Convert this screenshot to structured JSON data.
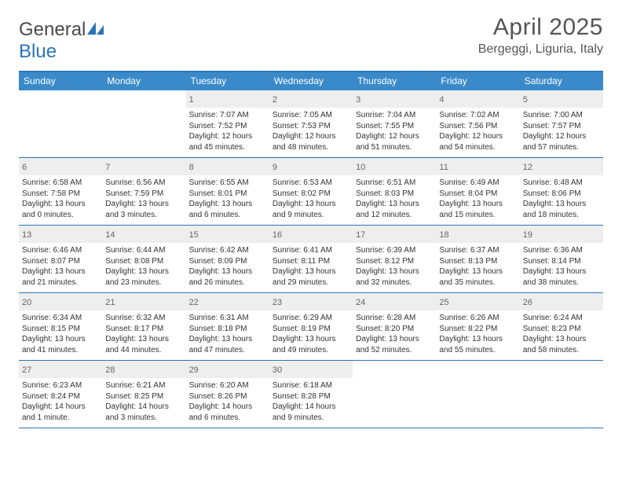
{
  "logo": {
    "word1": "General",
    "word2": "Blue"
  },
  "header": {
    "month": "April 2025",
    "location": "Bergeggi, Liguria, Italy"
  },
  "colors": {
    "brand_blue": "#2a74b8",
    "header_blue": "#3a8aca",
    "grey_band": "#eeeeee",
    "text": "#333333",
    "muted": "#555555"
  },
  "day_labels": [
    "Sunday",
    "Monday",
    "Tuesday",
    "Wednesday",
    "Thursday",
    "Friday",
    "Saturday"
  ],
  "weeks": [
    [
      null,
      null,
      {
        "n": "1",
        "sunrise": "7:07 AM",
        "sunset": "7:52 PM",
        "daylight": "12 hours and 45 minutes."
      },
      {
        "n": "2",
        "sunrise": "7:05 AM",
        "sunset": "7:53 PM",
        "daylight": "12 hours and 48 minutes."
      },
      {
        "n": "3",
        "sunrise": "7:04 AM",
        "sunset": "7:55 PM",
        "daylight": "12 hours and 51 minutes."
      },
      {
        "n": "4",
        "sunrise": "7:02 AM",
        "sunset": "7:56 PM",
        "daylight": "12 hours and 54 minutes."
      },
      {
        "n": "5",
        "sunrise": "7:00 AM",
        "sunset": "7:57 PM",
        "daylight": "12 hours and 57 minutes."
      }
    ],
    [
      {
        "n": "6",
        "sunrise": "6:58 AM",
        "sunset": "7:58 PM",
        "daylight": "13 hours and 0 minutes."
      },
      {
        "n": "7",
        "sunrise": "6:56 AM",
        "sunset": "7:59 PM",
        "daylight": "13 hours and 3 minutes."
      },
      {
        "n": "8",
        "sunrise": "6:55 AM",
        "sunset": "8:01 PM",
        "daylight": "13 hours and 6 minutes."
      },
      {
        "n": "9",
        "sunrise": "6:53 AM",
        "sunset": "8:02 PM",
        "daylight": "13 hours and 9 minutes."
      },
      {
        "n": "10",
        "sunrise": "6:51 AM",
        "sunset": "8:03 PM",
        "daylight": "13 hours and 12 minutes."
      },
      {
        "n": "11",
        "sunrise": "6:49 AM",
        "sunset": "8:04 PM",
        "daylight": "13 hours and 15 minutes."
      },
      {
        "n": "12",
        "sunrise": "6:48 AM",
        "sunset": "8:06 PM",
        "daylight": "13 hours and 18 minutes."
      }
    ],
    [
      {
        "n": "13",
        "sunrise": "6:46 AM",
        "sunset": "8:07 PM",
        "daylight": "13 hours and 21 minutes."
      },
      {
        "n": "14",
        "sunrise": "6:44 AM",
        "sunset": "8:08 PM",
        "daylight": "13 hours and 23 minutes."
      },
      {
        "n": "15",
        "sunrise": "6:42 AM",
        "sunset": "8:09 PM",
        "daylight": "13 hours and 26 minutes."
      },
      {
        "n": "16",
        "sunrise": "6:41 AM",
        "sunset": "8:11 PM",
        "daylight": "13 hours and 29 minutes."
      },
      {
        "n": "17",
        "sunrise": "6:39 AM",
        "sunset": "8:12 PM",
        "daylight": "13 hours and 32 minutes."
      },
      {
        "n": "18",
        "sunrise": "6:37 AM",
        "sunset": "8:13 PM",
        "daylight": "13 hours and 35 minutes."
      },
      {
        "n": "19",
        "sunrise": "6:36 AM",
        "sunset": "8:14 PM",
        "daylight": "13 hours and 38 minutes."
      }
    ],
    [
      {
        "n": "20",
        "sunrise": "6:34 AM",
        "sunset": "8:15 PM",
        "daylight": "13 hours and 41 minutes."
      },
      {
        "n": "21",
        "sunrise": "6:32 AM",
        "sunset": "8:17 PM",
        "daylight": "13 hours and 44 minutes."
      },
      {
        "n": "22",
        "sunrise": "6:31 AM",
        "sunset": "8:18 PM",
        "daylight": "13 hours and 47 minutes."
      },
      {
        "n": "23",
        "sunrise": "6:29 AM",
        "sunset": "8:19 PM",
        "daylight": "13 hours and 49 minutes."
      },
      {
        "n": "24",
        "sunrise": "6:28 AM",
        "sunset": "8:20 PM",
        "daylight": "13 hours and 52 minutes."
      },
      {
        "n": "25",
        "sunrise": "6:26 AM",
        "sunset": "8:22 PM",
        "daylight": "13 hours and 55 minutes."
      },
      {
        "n": "26",
        "sunrise": "6:24 AM",
        "sunset": "8:23 PM",
        "daylight": "13 hours and 58 minutes."
      }
    ],
    [
      {
        "n": "27",
        "sunrise": "6:23 AM",
        "sunset": "8:24 PM",
        "daylight": "14 hours and 1 minute."
      },
      {
        "n": "28",
        "sunrise": "6:21 AM",
        "sunset": "8:25 PM",
        "daylight": "14 hours and 3 minutes."
      },
      {
        "n": "29",
        "sunrise": "6:20 AM",
        "sunset": "8:26 PM",
        "daylight": "14 hours and 6 minutes."
      },
      {
        "n": "30",
        "sunrise": "6:18 AM",
        "sunset": "8:28 PM",
        "daylight": "14 hours and 9 minutes."
      },
      null,
      null,
      null
    ]
  ],
  "labels": {
    "sunrise": "Sunrise: ",
    "sunset": "Sunset: ",
    "daylight": "Daylight: "
  }
}
